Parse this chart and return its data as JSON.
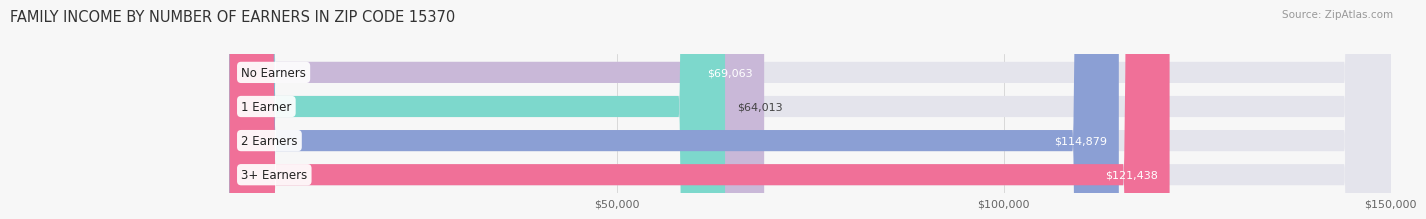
{
  "title": "FAMILY INCOME BY NUMBER OF EARNERS IN ZIP CODE 15370",
  "source": "Source: ZipAtlas.com",
  "categories": [
    "No Earners",
    "1 Earner",
    "2 Earners",
    "3+ Earners"
  ],
  "values": [
    69063,
    64013,
    114879,
    121438
  ],
  "bar_colors": [
    "#c9b8d8",
    "#7dd8cc",
    "#8b9fd4",
    "#f07098"
  ],
  "bar_bg_color": "#e4e4ec",
  "value_labels": [
    "$69,063",
    "$64,013",
    "$114,879",
    "$121,438"
  ],
  "xlim_max": 150000,
  "xticks": [
    50000,
    100000,
    150000
  ],
  "xtick_labels": [
    "$50,000",
    "$100,000",
    "$150,000"
  ],
  "title_fontsize": 10.5,
  "source_fontsize": 7.5,
  "label_fontsize": 8.5,
  "value_fontsize": 8,
  "background_color": "#f7f7f7",
  "bar_height": 0.62,
  "label_box_color": "#ffffff",
  "value_label_inside_threshold": 0.45
}
